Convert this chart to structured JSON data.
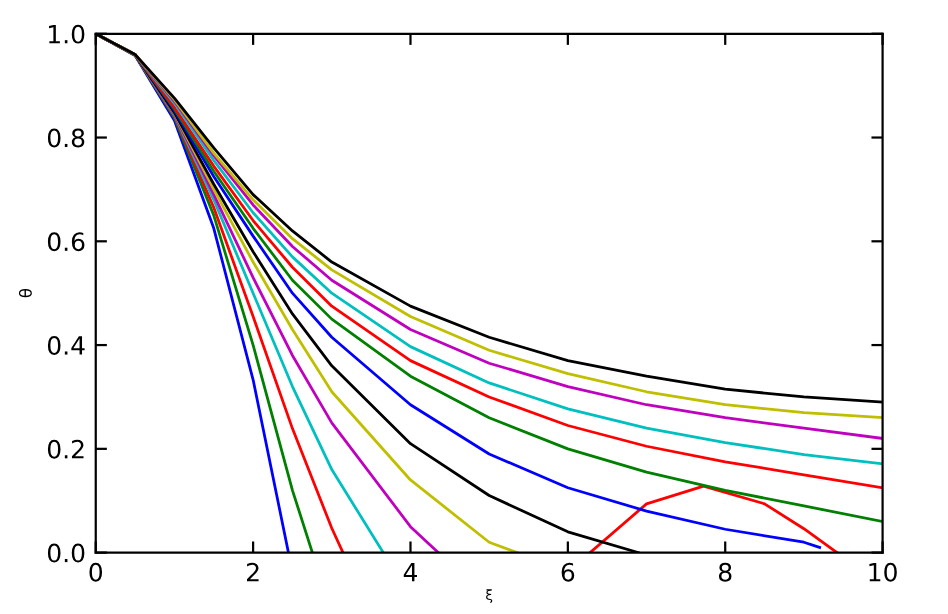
{
  "chart_data": {
    "type": "line",
    "xlabel": "ξ",
    "ylabel": "θ",
    "xlim": [
      0,
      10
    ],
    "ylim": [
      0,
      1.0
    ],
    "xticks": [
      0,
      2,
      4,
      6,
      8,
      10
    ],
    "yticks": [
      {
        "value": 0,
        "label": "0.0"
      },
      0.2,
      0.4,
      0.6,
      0.8,
      {
        "value": 1,
        "label": "1.0"
      }
    ],
    "grid": false,
    "legend": false,
    "line_style": "solid",
    "marker": "none",
    "series": [
      {
        "color": "#0000ff",
        "x": [
          0,
          0.5,
          1,
          1.5,
          2,
          2.449
        ],
        "values": [
          1,
          0.958,
          0.833,
          0.625,
          0.333,
          0
        ]
      },
      {
        "color": "#008000",
        "x": [
          0,
          0.5,
          1,
          1.5,
          2,
          2.5,
          2.753
        ],
        "values": [
          1,
          0.959,
          0.838,
          0.65,
          0.4,
          0.12,
          0
        ]
      },
      {
        "color": "#ff0000",
        "x": [
          0,
          0.5,
          1,
          1.5,
          2,
          2.5,
          3,
          3.142,
          4.7,
          6.283,
          7,
          7.725,
          8.5,
          9,
          9.42
        ],
        "values": [
          1,
          0.959,
          0.841,
          0.665,
          0.455,
          0.239,
          0.047,
          0,
          null,
          0,
          0.094,
          0.128,
          0.094,
          0.046,
          0
        ]
      },
      {
        "color": "#00bfbf",
        "x": [
          0,
          0.5,
          1,
          1.5,
          2,
          2.5,
          3,
          3.654
        ],
        "values": [
          1,
          0.959,
          0.843,
          0.68,
          0.5,
          0.32,
          0.16,
          0
        ]
      },
      {
        "color": "#bf00bf",
        "x": [
          0,
          0.5,
          1,
          1.5,
          2,
          2.5,
          3,
          4,
          4.353
        ],
        "values": [
          1,
          0.959,
          0.845,
          0.69,
          0.53,
          0.38,
          0.25,
          0.05,
          0
        ]
      },
      {
        "color": "#bfbf00",
        "x": [
          0,
          0.5,
          1,
          1.5,
          2,
          2.5,
          3,
          4,
          5,
          5.355
        ],
        "values": [
          1,
          0.959,
          0.847,
          0.7,
          0.56,
          0.43,
          0.31,
          0.14,
          0.02,
          0
        ]
      },
      {
        "color": "#000000",
        "x": [
          0,
          0.5,
          1,
          1.5,
          2,
          2.5,
          3,
          4,
          5,
          6,
          6.897
        ],
        "values": [
          1,
          0.959,
          0.848,
          0.71,
          0.58,
          0.46,
          0.36,
          0.21,
          0.11,
          0.04,
          0
        ]
      },
      {
        "color": "#0000ff",
        "x": [
          0,
          0.5,
          1,
          1.5,
          2,
          2.5,
          3,
          4,
          5,
          6,
          7,
          8,
          9,
          9.2
        ],
        "values": [
          1,
          0.96,
          0.852,
          0.725,
          0.61,
          0.5,
          0.415,
          0.285,
          0.19,
          0.125,
          0.08,
          0.045,
          0.02,
          0.01
        ]
      },
      {
        "color": "#008000",
        "x": [
          0,
          0.5,
          1,
          1.5,
          2,
          2.5,
          3,
          4,
          5,
          6,
          7,
          8,
          9,
          10
        ],
        "values": [
          1,
          0.96,
          0.855,
          0.735,
          0.625,
          0.525,
          0.45,
          0.34,
          0.26,
          0.2,
          0.155,
          0.12,
          0.09,
          0.06
        ]
      },
      {
        "color": "#ff0000",
        "x": [
          0,
          0.5,
          1,
          1.5,
          2,
          2.5,
          3,
          4,
          5,
          6,
          7,
          8,
          9,
          10
        ],
        "values": [
          1,
          0.96,
          0.858,
          0.745,
          0.64,
          0.55,
          0.475,
          0.37,
          0.3,
          0.245,
          0.205,
          0.175,
          0.15,
          0.125
        ]
      },
      {
        "color": "#00bfbf",
        "x": [
          0,
          0.5,
          1,
          1.5,
          2,
          2.5,
          3,
          4,
          5,
          6,
          7,
          8,
          9,
          10
        ],
        "values": [
          1,
          0.96,
          0.866,
          0.756,
          0.655,
          0.57,
          0.5,
          0.397,
          0.327,
          0.277,
          0.24,
          0.212,
          0.189,
          0.171
        ]
      },
      {
        "color": "#bf00bf",
        "x": [
          0,
          0.5,
          1,
          1.5,
          2,
          2.5,
          3,
          4,
          5,
          6,
          7,
          8,
          9,
          10
        ],
        "values": [
          1,
          0.96,
          0.87,
          0.765,
          0.67,
          0.59,
          0.525,
          0.43,
          0.365,
          0.32,
          0.285,
          0.26,
          0.24,
          0.22
        ]
      },
      {
        "color": "#bfbf00",
        "x": [
          0,
          0.5,
          1,
          1.5,
          2,
          2.5,
          3,
          4,
          5,
          6,
          7,
          8,
          9,
          10
        ],
        "values": [
          1,
          0.96,
          0.873,
          0.77,
          0.68,
          0.605,
          0.545,
          0.455,
          0.39,
          0.345,
          0.31,
          0.285,
          0.27,
          0.26
        ]
      },
      {
        "color": "#000000",
        "x": [
          0,
          0.5,
          1,
          1.5,
          2,
          2.5,
          3,
          4,
          5,
          6,
          7,
          8,
          9,
          10
        ],
        "values": [
          1,
          0.96,
          0.876,
          0.78,
          0.69,
          0.62,
          0.56,
          0.475,
          0.415,
          0.37,
          0.34,
          0.315,
          0.3,
          0.29
        ]
      }
    ]
  }
}
